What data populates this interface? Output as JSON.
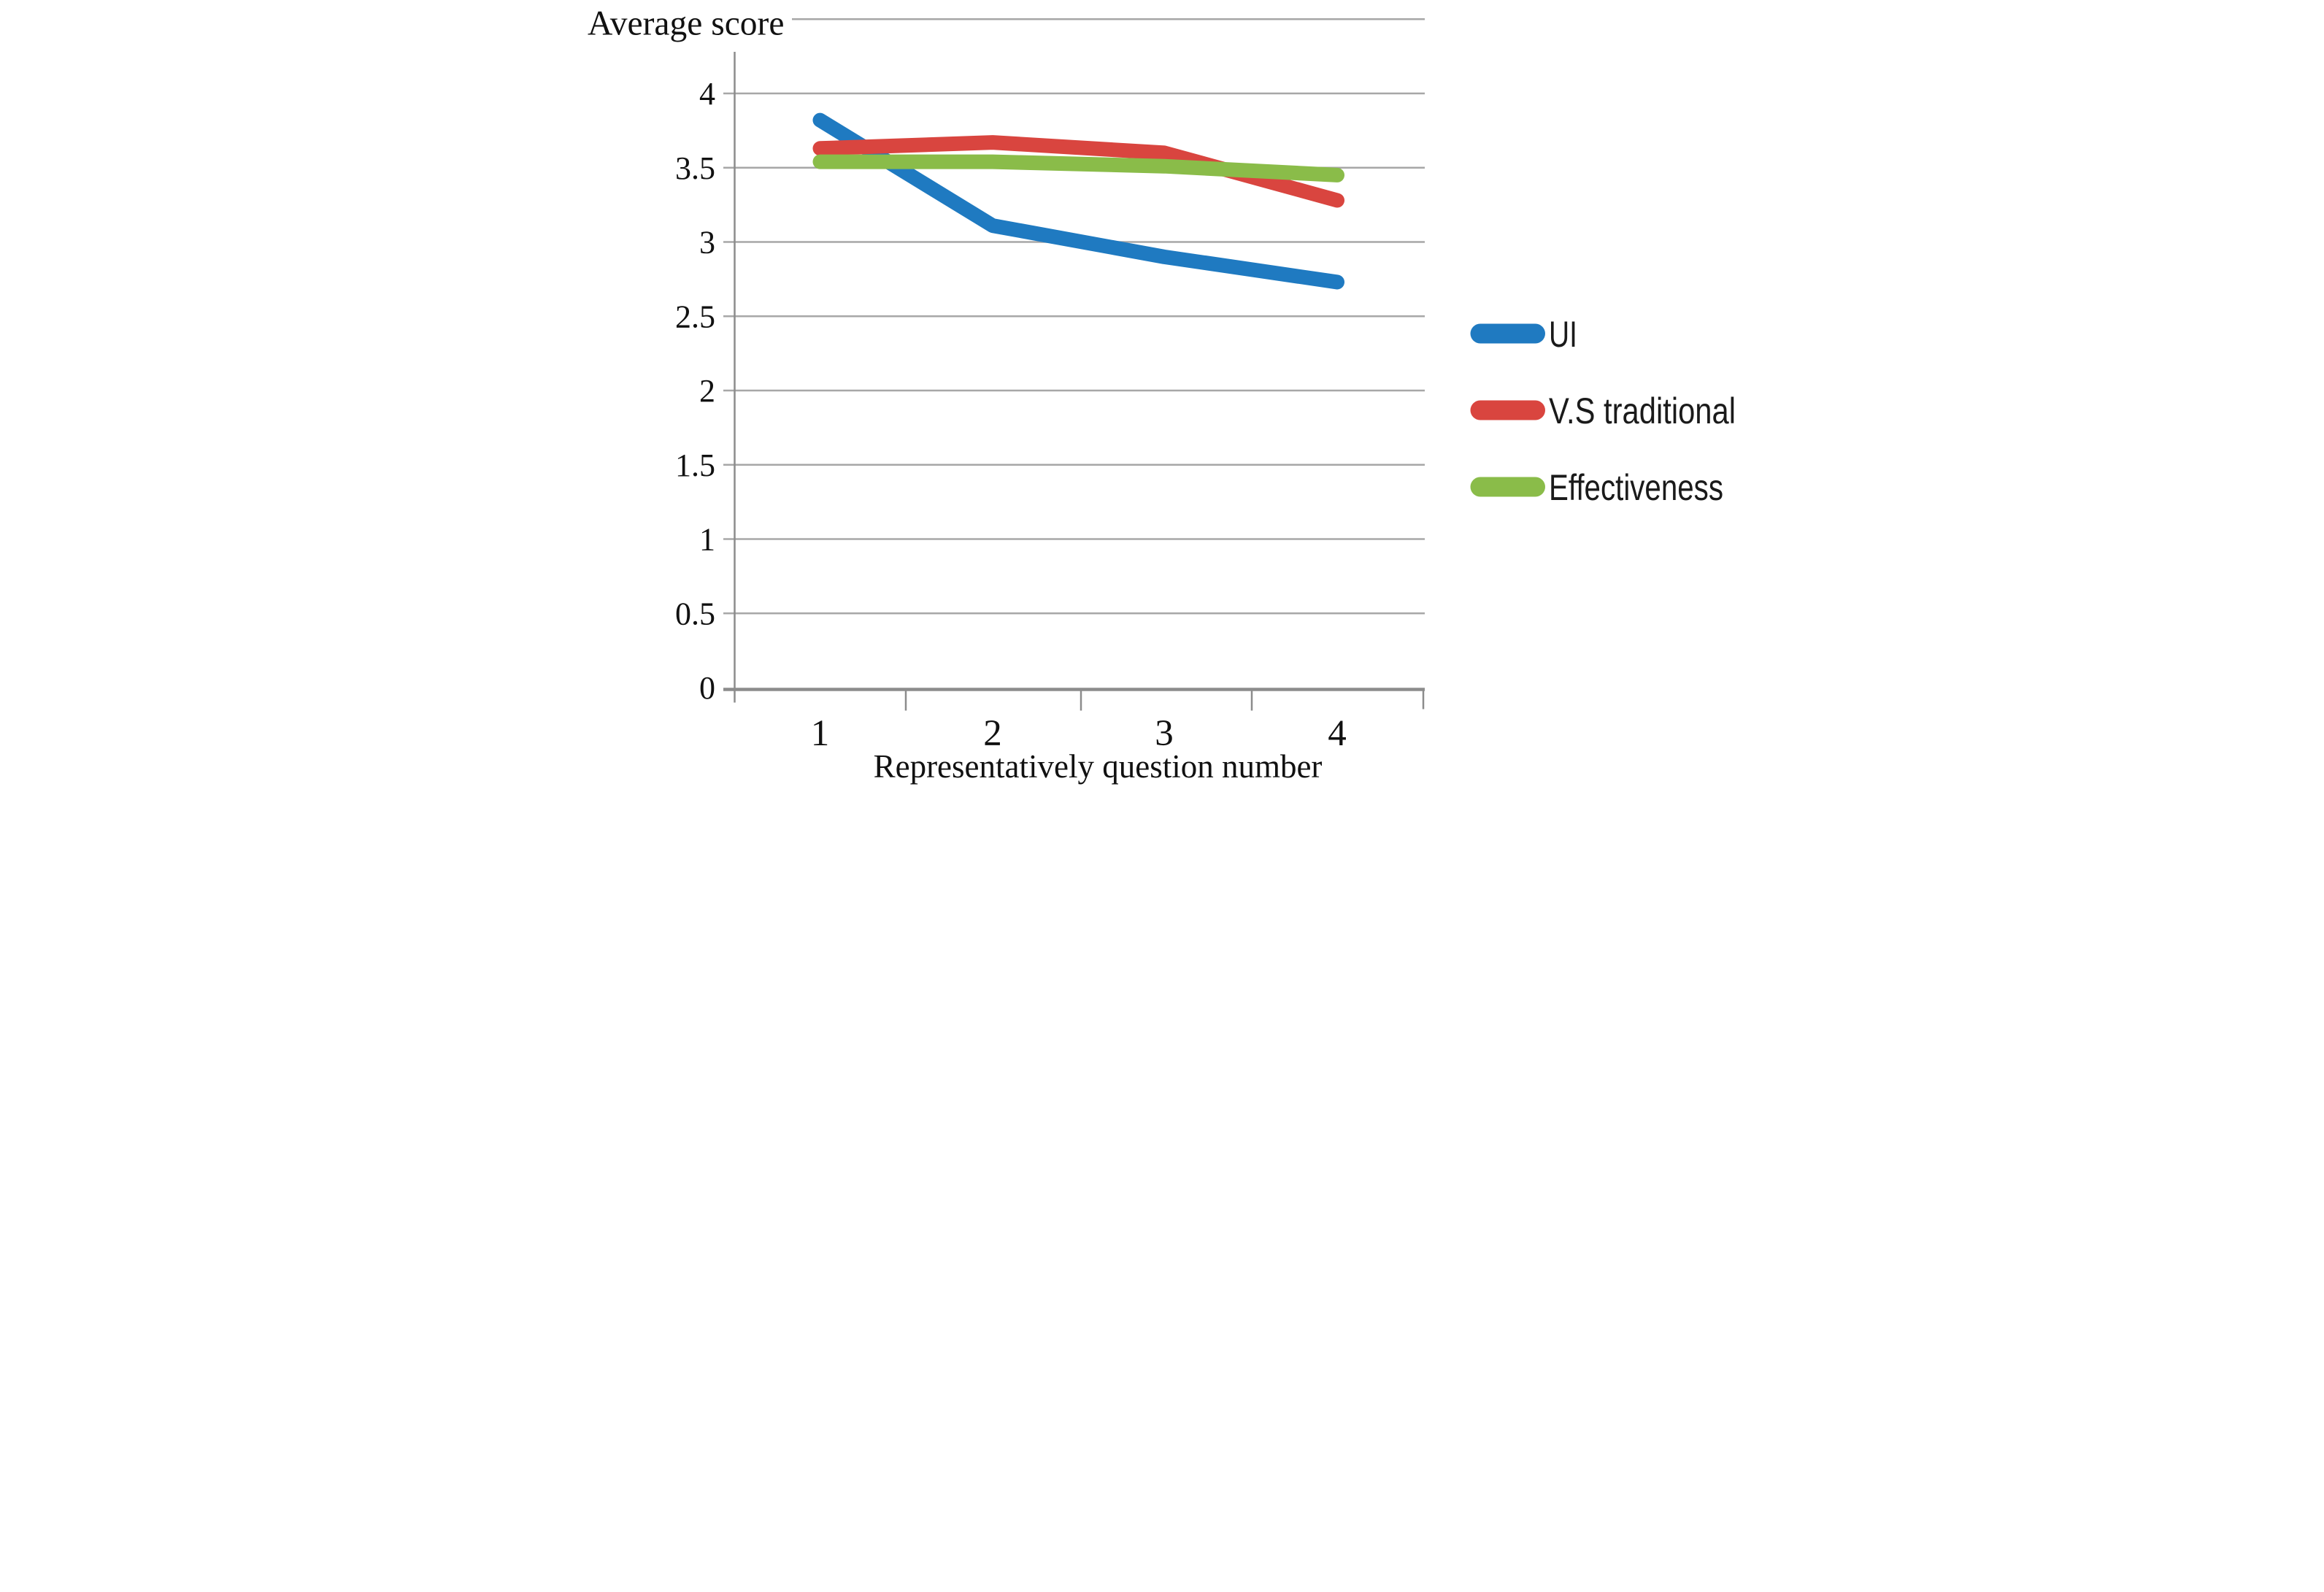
{
  "chart_data": {
    "type": "line",
    "y_axis_title": "Average score",
    "x_axis_title": "Representatively question number",
    "categories": [
      "1",
      "2",
      "3",
      "4"
    ],
    "series": [
      {
        "name": "UI",
        "color": "#1F7AC1",
        "values": [
          3.82,
          3.11,
          2.9,
          2.73
        ]
      },
      {
        "name": "V.S traditional",
        "color": "#D9453F",
        "values": [
          3.63,
          3.67,
          3.6,
          3.28
        ]
      },
      {
        "name": "Effectiveness",
        "color": "#8ABC49",
        "values": [
          3.54,
          3.54,
          3.51,
          3.45
        ]
      }
    ],
    "ylim": [
      0,
      4.5
    ],
    "ytick_values": [
      4,
      3.5,
      3,
      2.5,
      2,
      1.5,
      1,
      0.5,
      0
    ],
    "ytick_labels": [
      "4",
      "3.5",
      "3",
      "2.5",
      "2",
      "1.5",
      "1",
      "0.5",
      "0"
    ],
    "grid": true,
    "grid_interval": 0.5,
    "legend_position": "right-middle",
    "gridline_color": "#A7A7A7",
    "axis_color": "#8C8C8C",
    "text_color": "#111111",
    "background_color": "#FFFFFF"
  }
}
